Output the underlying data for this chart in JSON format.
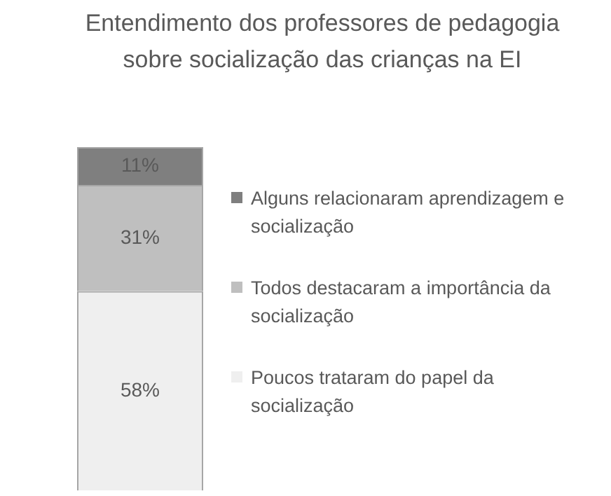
{
  "chart_data": {
    "type": "bar",
    "title": "Entendimento dos professores de pedagogia sobre socialização das crianças na EI",
    "categories": [
      null
    ],
    "stacked": true,
    "tick_labels": false,
    "legend": "right",
    "series": [
      {
        "name": "Poucos trataram do papel da socialização",
        "color": "#efefef",
        "values": [
          58
        ],
        "value_labels": [
          "58%"
        ]
      },
      {
        "name": "Todos destacaram a importância da socialização",
        "color": "#bfbfbf",
        "values": [
          31
        ],
        "value_labels": [
          "31%"
        ]
      },
      {
        "name": "Alguns relacionaram aprendizagem e socialização",
        "color": "#7f7f7f",
        "values": [
          11
        ],
        "value_labels": [
          "11%"
        ]
      }
    ]
  }
}
